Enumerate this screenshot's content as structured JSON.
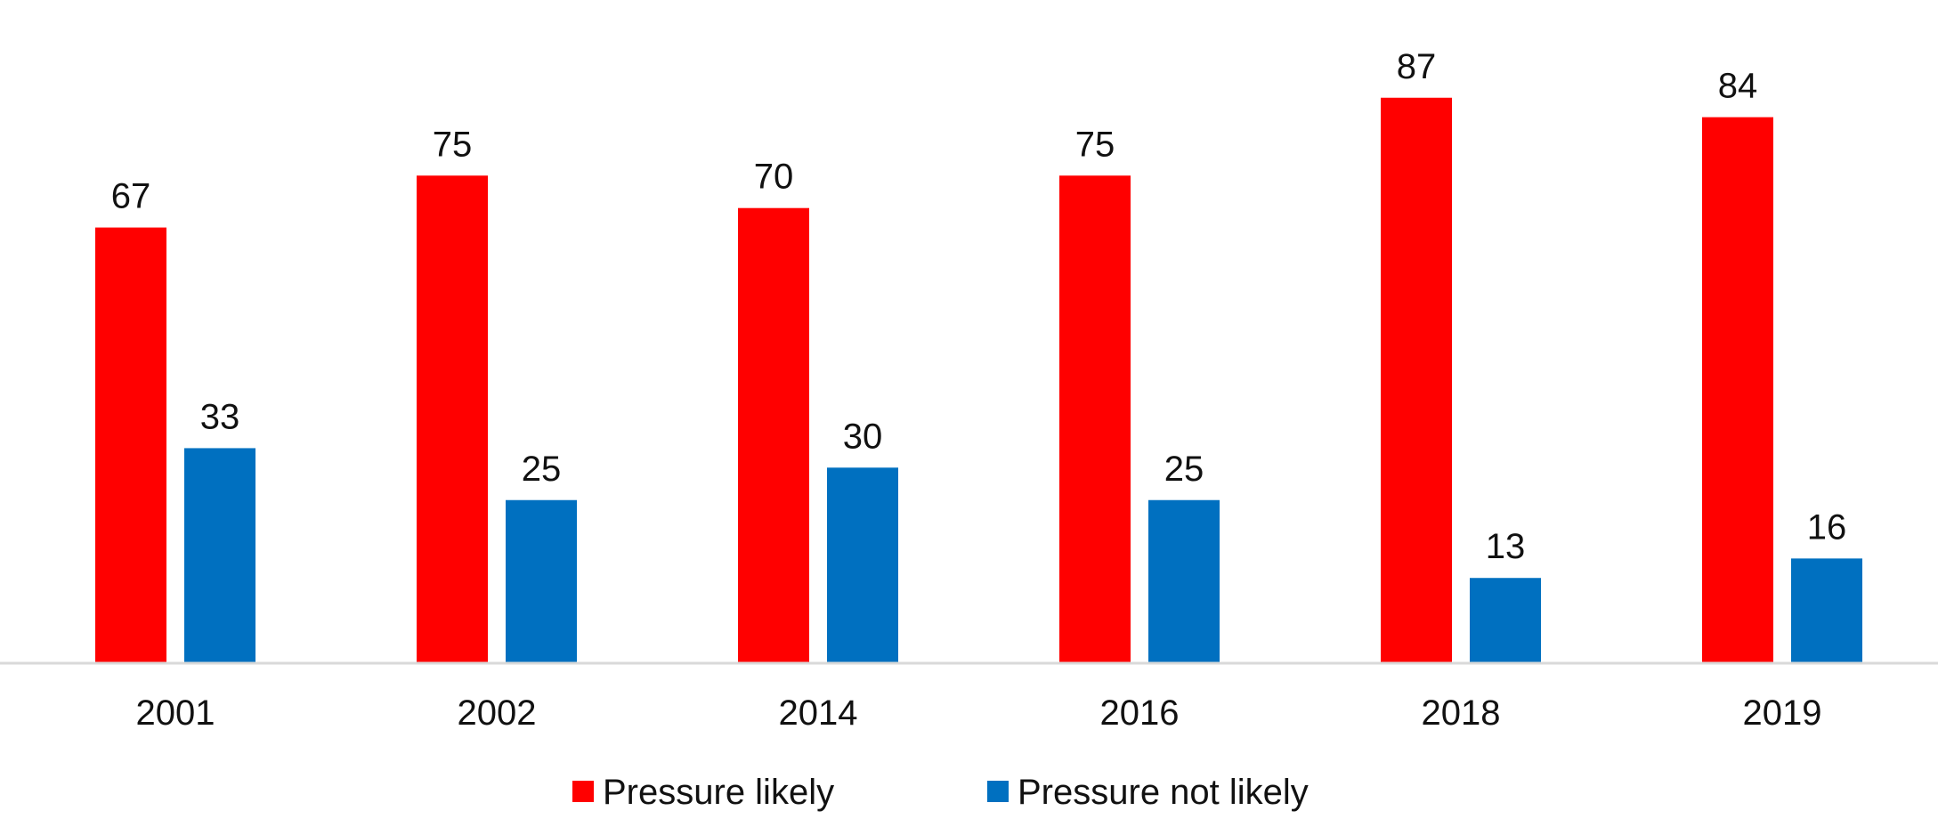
{
  "chart_data": {
    "type": "bar",
    "categories": [
      "2001",
      "2002",
      "2014",
      "2016",
      "2018",
      "2019"
    ],
    "series": [
      {
        "name": "Pressure likely",
        "color": "#ff0000",
        "values": [
          67,
          75,
          70,
          75,
          87,
          84
        ]
      },
      {
        "name": "Pressure not likely",
        "color": "#0070c0",
        "values": [
          33,
          25,
          30,
          25,
          13,
          16
        ]
      }
    ],
    "title": "",
    "xlabel": "",
    "ylabel": "",
    "ylim": [
      0,
      100
    ],
    "grid": false,
    "show_y_axis": false,
    "data_labels": true,
    "legend_position": "bottom",
    "axis_color": "#d9d9d9"
  }
}
